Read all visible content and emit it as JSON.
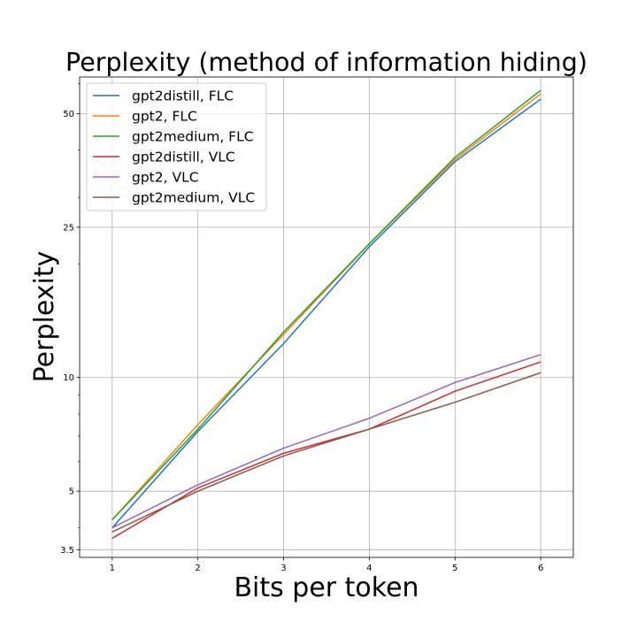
{
  "chart_data": {
    "type": "line",
    "title": "Perplexity (method of information hiding)",
    "xlabel": "Bits per token",
    "ylabel": "Perplexity",
    "x": [
      1,
      2,
      3,
      4,
      5,
      6
    ],
    "xlim": [
      0.62,
      6.38
    ],
    "ylim": [
      3.34,
      62.5
    ],
    "yscale": "log",
    "xticks": [
      1,
      2,
      3,
      4,
      5,
      6
    ],
    "yticks": [
      3.5,
      5,
      10,
      25,
      50
    ],
    "grid": true,
    "legend": "top-left",
    "series": [
      {
        "name": "gpt2distill, FLC",
        "color": "#1f77b4",
        "values": [
          4.0,
          7.2,
          12.3,
          22.2,
          37.3,
          54.6
        ]
      },
      {
        "name": "gpt2, FLC",
        "color": "#ff7f0e",
        "values": [
          4.2,
          7.5,
          13.0,
          22.6,
          37.8,
          56.4
        ]
      },
      {
        "name": "gpt2medium, FLC",
        "color": "#2ca02c",
        "values": [
          4.2,
          7.3,
          13.2,
          22.6,
          38.3,
          57.6
        ]
      },
      {
        "name": "gpt2distill, VLC",
        "color": "#d62728",
        "values": [
          3.75,
          5.1,
          6.3,
          7.3,
          9.2,
          11.0
        ]
      },
      {
        "name": "gpt2, VLC",
        "color": "#9467bd",
        "values": [
          4.0,
          5.2,
          6.5,
          7.8,
          9.7,
          11.5
        ]
      },
      {
        "name": "gpt2medium, VLC",
        "color": "#8c564b",
        "values": [
          3.9,
          5.0,
          6.2,
          7.3,
          8.6,
          10.3
        ]
      }
    ]
  }
}
